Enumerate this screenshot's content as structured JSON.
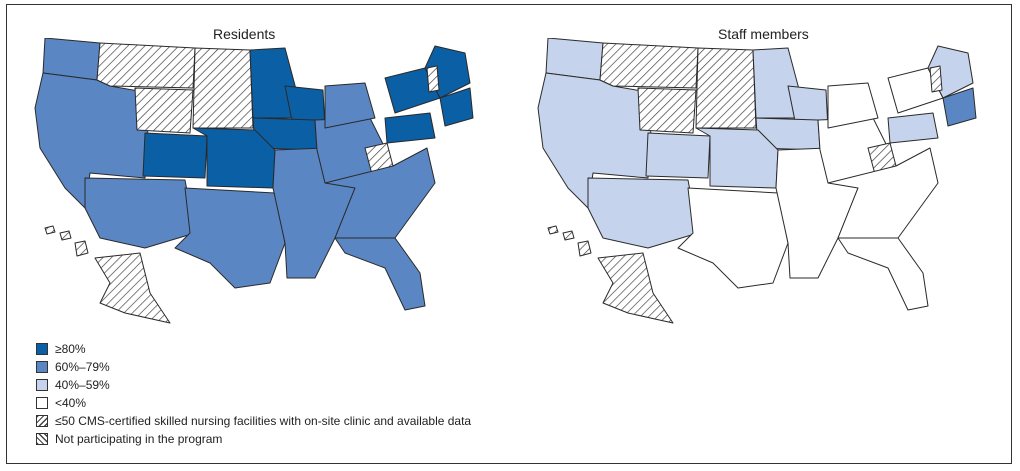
{
  "maps": [
    {
      "title": "Residents",
      "regions": {
        "west": "c60",
        "pnw_north": "c60",
        "montana": "hatch",
        "wyoming": "hatch",
        "dakotas": "hatch",
        "colorado": "c80",
        "plains": "c80",
        "minnesota": "c80",
        "wisconsin": "c80",
        "iowa": "c80",
        "southwest": "c60",
        "texas": "c60",
        "south": "c60",
        "midwest": "c60",
        "michigan": "c60",
        "newyork": "c80",
        "pennsylvania": "c80",
        "newengland_n": "c80",
        "newengland_s": "c80",
        "westvirginia": "hatch",
        "vermont": "hatch",
        "florida": "c60",
        "southeast": "c60",
        "alaska": "hatch",
        "hawaii": "hatch"
      }
    },
    {
      "title": "Staff members",
      "regions": {
        "west": "c40",
        "pnw_north": "c40",
        "montana": "hatch",
        "wyoming": "hatch",
        "dakotas": "hatch",
        "colorado": "c40",
        "plains": "c40",
        "minnesota": "c40",
        "wisconsin": "c40",
        "iowa": "c40",
        "southwest": "c40",
        "texas": "c0",
        "south": "c0",
        "midwest": "c0",
        "michigan": "c0",
        "newyork": "c0",
        "pennsylvania": "c40",
        "newengland_n": "c40",
        "newengland_s": "c60",
        "westvirginia": "hatch",
        "vermont": "hatch",
        "florida": "c0",
        "southeast": "c0",
        "alaska": "hatch",
        "hawaii": "hatch"
      }
    }
  ],
  "legend": [
    {
      "label": "≥80%",
      "fill": "c80"
    },
    {
      "label": "60%–79%",
      "fill": "c60"
    },
    {
      "label": "40%–59%",
      "fill": "c40"
    },
    {
      "label": "<40%",
      "fill": "c0"
    },
    {
      "label": "≤50 CMS-certified skilled nursing facilities with on-site clinic and available data",
      "fill": "hatch"
    },
    {
      "label": "Not participating in the program",
      "fill": "hatch2"
    }
  ],
  "colors": {
    "c80": "#0b5fa5",
    "c60": "#5b86c4",
    "c40": "#c6d3ec",
    "c0": "#ffffff",
    "stroke": "#2a2a2a"
  }
}
